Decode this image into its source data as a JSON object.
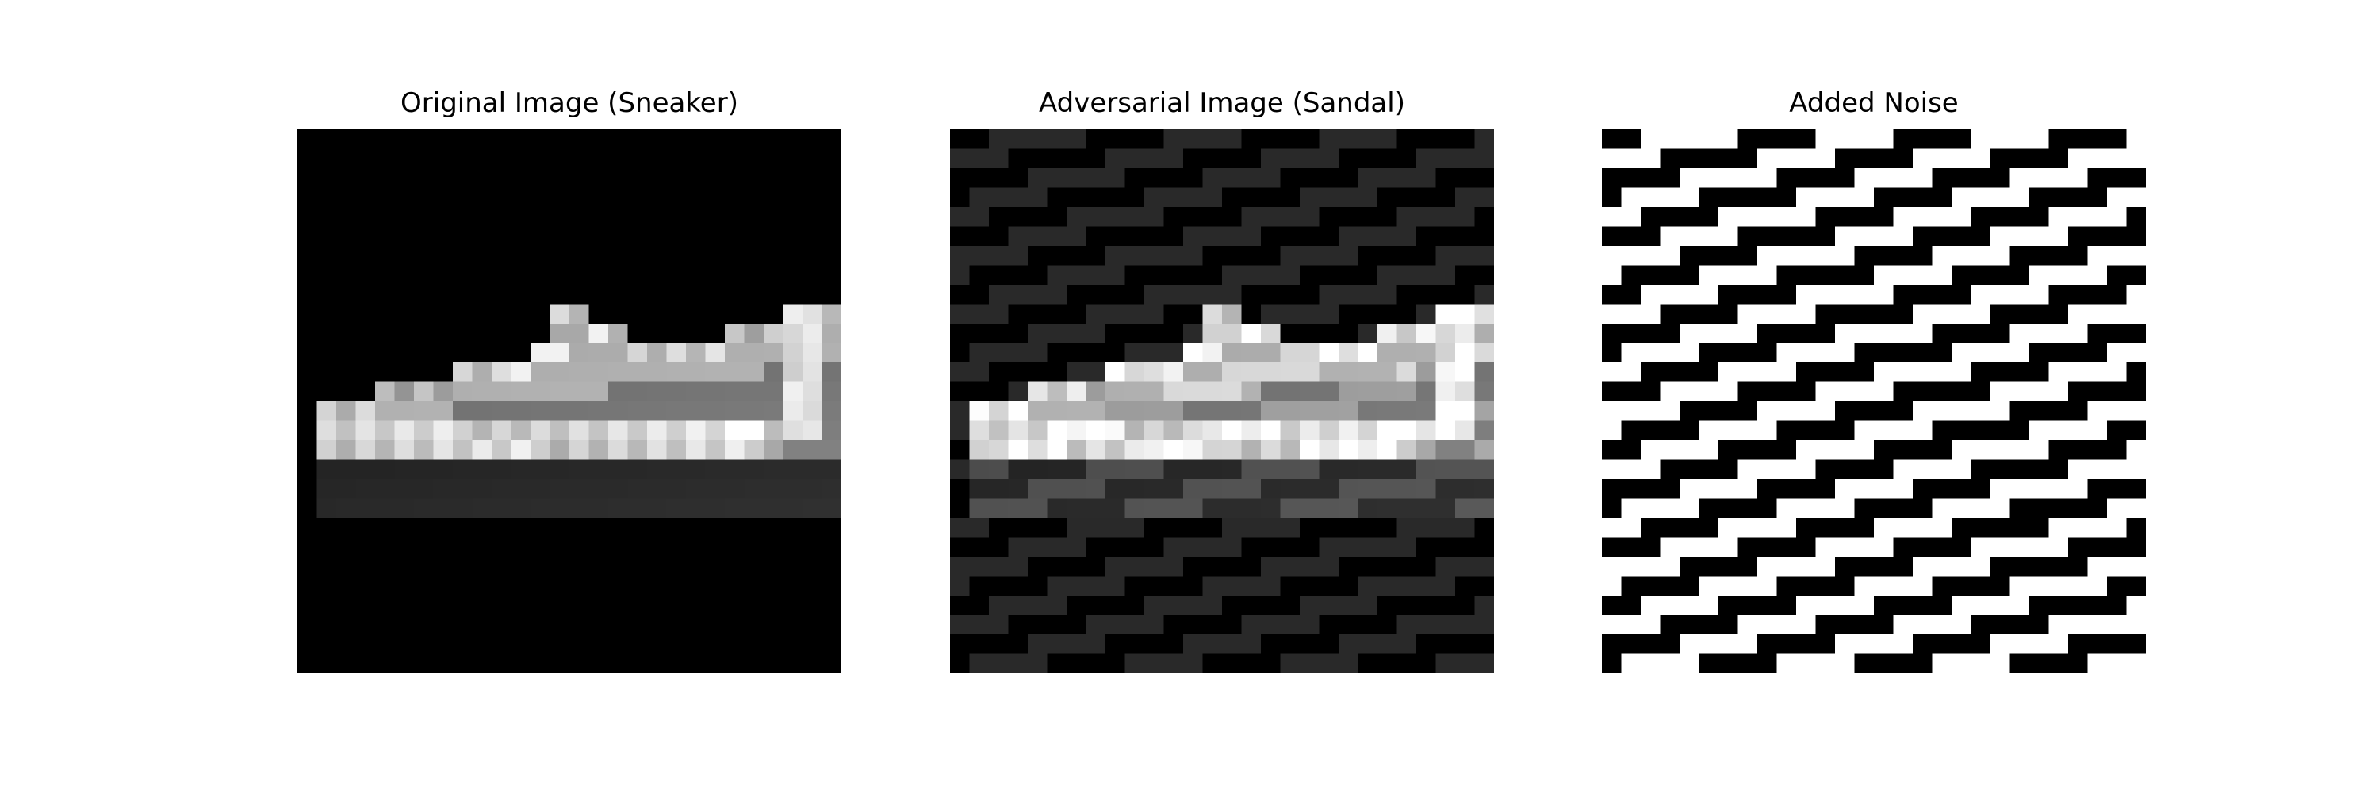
{
  "panels": [
    {
      "title": "Original Image (Sneaker)",
      "kind": "original"
    },
    {
      "title": "Adversarial Image (Sandal)",
      "kind": "adversarial"
    },
    {
      "title": "Added Noise",
      "kind": "noise"
    }
  ],
  "grid_size": 28,
  "colors": {
    "background": "#ffffff",
    "title_text": "#000000"
  }
}
